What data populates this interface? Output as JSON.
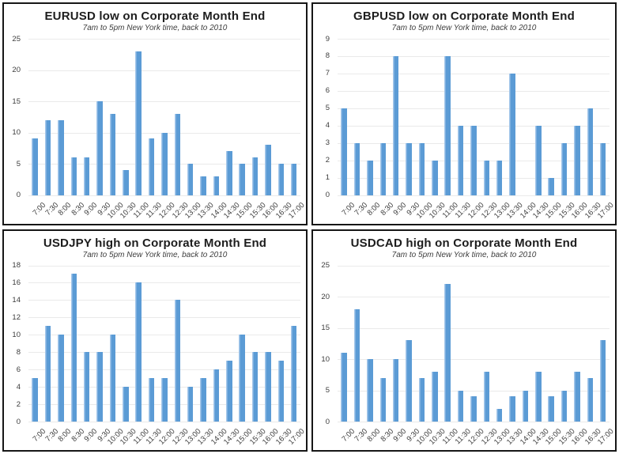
{
  "page": {
    "background": "#ffffff",
    "panel_border_color": "#161616"
  },
  "colors": {
    "bar_fill": "#5b9bd5",
    "bar_highlight": "#a4c7ea",
    "gridline": "#eaeaea",
    "title_text": "#1d1d1d",
    "subtitle_text": "#3d3d3d",
    "axis_text": "#3c3c3c"
  },
  "shared": {
    "subtitle": "7am to 5pm New York time, back to 2010",
    "categories": [
      "7:00",
      "7:30",
      "8:00",
      "8:30",
      "9:00",
      "9:30",
      "10:00",
      "10:30",
      "11:00",
      "11:30",
      "12:00",
      "12:30",
      "13:00",
      "13:30",
      "14:00",
      "14:30",
      "15:00",
      "15:30",
      "16:00",
      "16:30",
      "17:00"
    ]
  },
  "chart_data": [
    {
      "id": "eurusd",
      "type": "bar",
      "title": "EURUSD low on Corporate Month End",
      "subtitle": "7am to 5pm New York time, back to 2010",
      "xlabel": "",
      "ylabel": "",
      "grid": true,
      "legend": false,
      "ylim": [
        0,
        25
      ],
      "ytick": 5,
      "categories": [
        "7:00",
        "7:30",
        "8:00",
        "8:30",
        "9:00",
        "9:30",
        "10:00",
        "10:30",
        "11:00",
        "11:30",
        "12:00",
        "12:30",
        "13:00",
        "13:30",
        "14:00",
        "14:30",
        "15:00",
        "15:30",
        "16:00",
        "16:30",
        "17:00"
      ],
      "values": [
        9,
        12,
        12,
        6,
        6,
        15,
        13,
        4,
        23,
        9,
        10,
        13,
        5,
        3,
        3,
        7,
        5,
        6,
        8,
        5,
        5
      ]
    },
    {
      "id": "gbpusd",
      "type": "bar",
      "title": "GBPUSD low on Corporate Month End",
      "subtitle": "7am to 5pm New York time, back to 2010",
      "xlabel": "",
      "ylabel": "",
      "grid": true,
      "legend": false,
      "ylim": [
        0,
        9
      ],
      "ytick": 1,
      "categories": [
        "7:00",
        "7:30",
        "8:00",
        "8:30",
        "9:00",
        "9:30",
        "10:00",
        "10:30",
        "11:00",
        "11:30",
        "12:00",
        "12:30",
        "13:00",
        "13:30",
        "14:00",
        "14:30",
        "15:00",
        "15:30",
        "16:00",
        "16:30",
        "17:00"
      ],
      "values": [
        5,
        3,
        2,
        3,
        8,
        3,
        3,
        2,
        8,
        4,
        4,
        2,
        2,
        7,
        0,
        4,
        1,
        3,
        4,
        5,
        3
      ]
    },
    {
      "id": "usdjpy",
      "type": "bar",
      "title": "USDJPY high on Corporate Month End",
      "subtitle": "7am to 5pm New York time, back to 2010",
      "xlabel": "",
      "ylabel": "",
      "grid": true,
      "legend": false,
      "ylim": [
        0,
        18
      ],
      "ytick": 2,
      "categories": [
        "7:00",
        "7:30",
        "8:00",
        "8:30",
        "9:00",
        "9:30",
        "10:00",
        "10:30",
        "11:00",
        "11:30",
        "12:00",
        "12:30",
        "13:00",
        "13:30",
        "14:00",
        "14:30",
        "15:00",
        "15:30",
        "16:00",
        "16:30",
        "17:00"
      ],
      "values": [
        5,
        11,
        10,
        17,
        8,
        8,
        10,
        4,
        16,
        5,
        5,
        14,
        4,
        5,
        6,
        7,
        10,
        8,
        8,
        7,
        11
      ]
    },
    {
      "id": "usdcad",
      "type": "bar",
      "title": "USDCAD high on Corporate Month End",
      "subtitle": "7am to 5pm New York time, back to 2010",
      "xlabel": "",
      "ylabel": "",
      "grid": true,
      "legend": false,
      "ylim": [
        0,
        25
      ],
      "ytick": 5,
      "categories": [
        "7:00",
        "7:30",
        "8:00",
        "8:30",
        "9:00",
        "9:30",
        "10:00",
        "10:30",
        "11:00",
        "11:30",
        "12:00",
        "12:30",
        "13:00",
        "13:30",
        "14:00",
        "14:30",
        "15:00",
        "15:30",
        "16:00",
        "16:30",
        "17:00"
      ],
      "values": [
        11,
        18,
        10,
        7,
        10,
        13,
        7,
        8,
        22,
        5,
        4,
        8,
        2,
        4,
        5,
        8,
        4,
        5,
        8,
        7,
        13
      ]
    }
  ]
}
